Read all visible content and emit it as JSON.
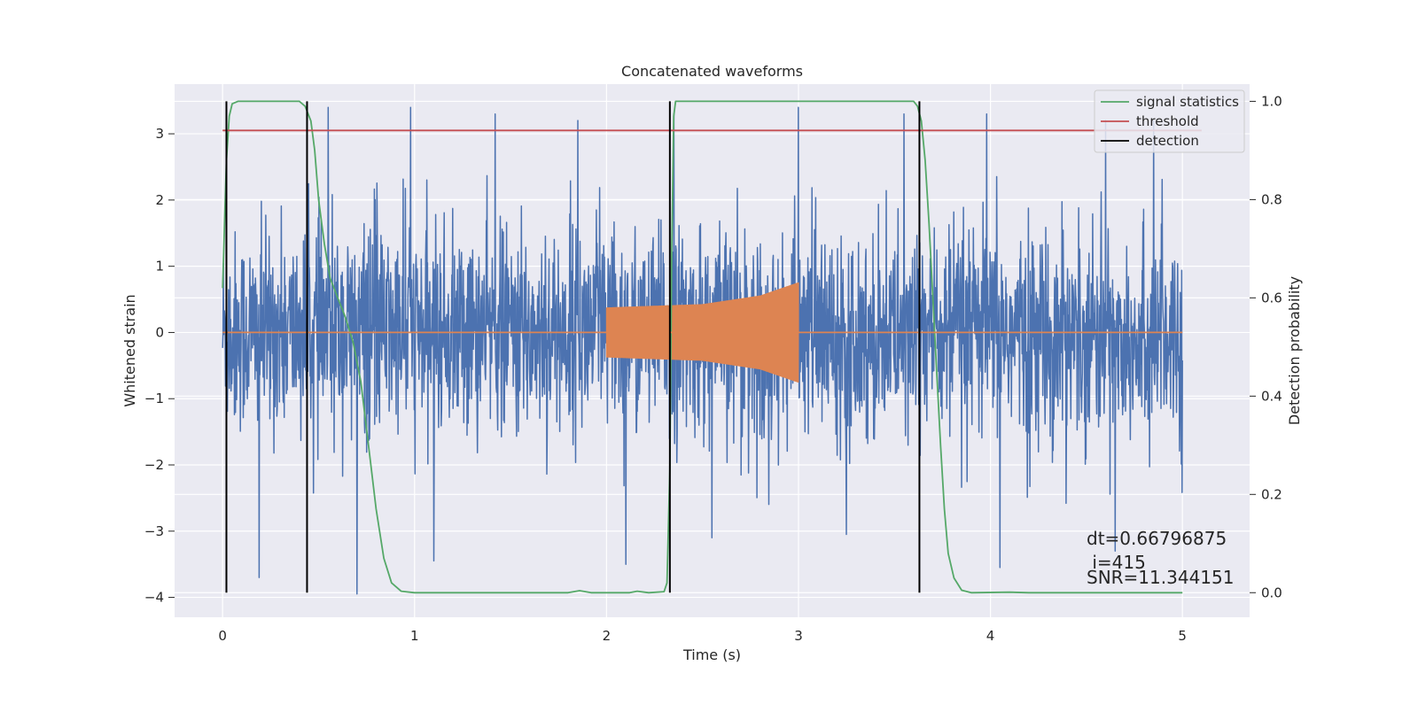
{
  "chart_data": {
    "type": "line",
    "title": "Concatenated waveforms",
    "xlabel": "Time (s)",
    "ylabel": "Whitened strain",
    "ylabel_right": "Detection probability",
    "xlim": [
      -0.25,
      5.35
    ],
    "ylim": [
      -4.3,
      3.75
    ],
    "ylim_right": [
      -0.05,
      1.035
    ],
    "x_ticks": [
      "0",
      "1",
      "2",
      "3",
      "4",
      "5"
    ],
    "y_ticks": [
      "3",
      "2",
      "1",
      "0",
      "−1",
      "−2",
      "−3",
      "−4"
    ],
    "y_ticks_right": [
      "1.0",
      "0.8",
      "0.6",
      "0.4",
      "0.2",
      "0.0"
    ],
    "grid": true,
    "legend_position": "top-right",
    "legend": [
      "signal statistics",
      "threshold",
      "detection"
    ],
    "series": [
      {
        "name": "whitened strain",
        "axis": "left",
        "color": "#4c72b0",
        "kind": "noise",
        "x_range": [
          0,
          5
        ],
        "amplitude_typical": 1.0,
        "spikes": [
          [
            0.55,
            3.4
          ],
          [
            0.98,
            3.4
          ],
          [
            1.42,
            3.3
          ],
          [
            1.85,
            3.2
          ],
          [
            2.35,
            3.3
          ],
          [
            3.0,
            3.4
          ],
          [
            3.55,
            3.3
          ],
          [
            3.98,
            3.3
          ],
          [
            4.6,
            3.2
          ],
          [
            4.85,
            3.2
          ],
          [
            0.19,
            -3.7
          ],
          [
            0.7,
            -3.95
          ],
          [
            1.1,
            -3.45
          ],
          [
            2.1,
            -3.5
          ],
          [
            4.05,
            -3.55
          ],
          [
            4.65,
            -3.3
          ],
          [
            3.25,
            -3.05
          ],
          [
            2.55,
            -3.1
          ]
        ]
      },
      {
        "name": "injected signal",
        "axis": "left",
        "color": "#dd8452",
        "kind": "chirp",
        "x_range": [
          2.0,
          3.0
        ],
        "envelope": [
          [
            2.0,
            0.37
          ],
          [
            2.5,
            0.42
          ],
          [
            2.8,
            0.55
          ],
          [
            3.0,
            0.75
          ]
        ]
      },
      {
        "name": "signal statistics",
        "axis": "right",
        "color": "#55a868",
        "points": [
          [
            0,
            0.62
          ],
          [
            0.01,
            0.75
          ],
          [
            0.02,
            0.88
          ],
          [
            0.035,
            0.97
          ],
          [
            0.05,
            0.995
          ],
          [
            0.08,
            1.0
          ],
          [
            0.4,
            1.0
          ],
          [
            0.43,
            0.99
          ],
          [
            0.46,
            0.96
          ],
          [
            0.48,
            0.9
          ],
          [
            0.5,
            0.8
          ],
          [
            0.53,
            0.71
          ],
          [
            0.56,
            0.64
          ],
          [
            0.6,
            0.6
          ],
          [
            0.64,
            0.56
          ],
          [
            0.68,
            0.51
          ],
          [
            0.72,
            0.43
          ],
          [
            0.76,
            0.3
          ],
          [
            0.8,
            0.17
          ],
          [
            0.84,
            0.07
          ],
          [
            0.88,
            0.02
          ],
          [
            0.93,
            0.003
          ],
          [
            1.0,
            0.0
          ],
          [
            1.8,
            0.0
          ],
          [
            1.86,
            0.004
          ],
          [
            1.92,
            0.0
          ],
          [
            2.12,
            0.0
          ],
          [
            2.16,
            0.003
          ],
          [
            2.22,
            0.0
          ],
          [
            2.3,
            0.002
          ],
          [
            2.315,
            0.02
          ],
          [
            2.33,
            0.25
          ],
          [
            2.34,
            0.7
          ],
          [
            2.35,
            0.97
          ],
          [
            2.36,
            1.0
          ],
          [
            3.6,
            1.0
          ],
          [
            3.62,
            0.99
          ],
          [
            3.64,
            0.96
          ],
          [
            3.66,
            0.88
          ],
          [
            3.68,
            0.75
          ],
          [
            3.7,
            0.6
          ],
          [
            3.72,
            0.45
          ],
          [
            3.74,
            0.3
          ],
          [
            3.76,
            0.17
          ],
          [
            3.78,
            0.08
          ],
          [
            3.81,
            0.03
          ],
          [
            3.85,
            0.005
          ],
          [
            3.9,
            0.0
          ],
          [
            4.1,
            0.001
          ],
          [
            4.2,
            0.0
          ],
          [
            5.0,
            0.0
          ]
        ]
      },
      {
        "name": "threshold",
        "axis": "left",
        "color": "#c44e52",
        "points": [
          [
            0,
            3.05
          ],
          [
            5.1,
            3.05
          ]
        ]
      },
      {
        "name": "zero line",
        "axis": "left",
        "color": "#dd8452",
        "points": [
          [
            0,
            0
          ],
          [
            5,
            0
          ]
        ]
      }
    ],
    "detections": {
      "color": "#000000",
      "x": [
        0.02,
        0.44,
        2.33,
        3.63
      ],
      "y_range_right": [
        0.0,
        1.0
      ]
    },
    "annotations": [
      "dt=0.66796875",
      " i=415",
      "SNR=11.344151"
    ]
  }
}
